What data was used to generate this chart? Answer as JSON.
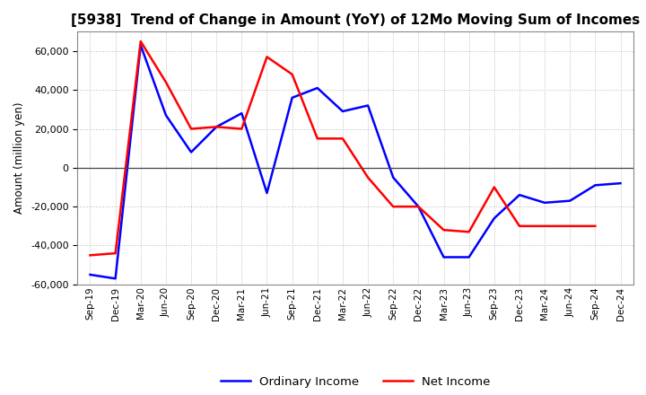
{
  "title": "[5938]  Trend of Change in Amount (YoY) of 12Mo Moving Sum of Incomes",
  "ylabel": "Amount (million yen)",
  "x_labels": [
    "Sep-19",
    "Dec-19",
    "Mar-20",
    "Jun-20",
    "Sep-20",
    "Dec-20",
    "Mar-21",
    "Jun-21",
    "Sep-21",
    "Dec-21",
    "Mar-22",
    "Jun-22",
    "Sep-22",
    "Dec-22",
    "Mar-23",
    "Jun-23",
    "Sep-23",
    "Dec-23",
    "Mar-24",
    "Jun-24",
    "Sep-24",
    "Dec-24"
  ],
  "ordinary_income": [
    -55000,
    -57000,
    63000,
    27000,
    8000,
    21000,
    28000,
    -13000,
    36000,
    41000,
    29000,
    32000,
    -5000,
    -20000,
    -46000,
    -46000,
    -26000,
    -14000,
    -18000,
    -17000,
    -9000,
    -8000
  ],
  "net_income": [
    -45000,
    -44000,
    65000,
    44000,
    20000,
    21000,
    20000,
    57000,
    48000,
    15000,
    15000,
    -5000,
    -20000,
    -20000,
    -32000,
    -33000,
    -10000,
    -30000,
    -30000,
    -30000,
    -30000,
    null
  ],
  "ordinary_color": "#0000ff",
  "net_color": "#ff0000",
  "ylim": [
    -60000,
    70000
  ],
  "yticks": [
    -60000,
    -40000,
    -20000,
    0,
    20000,
    40000,
    60000
  ],
  "background_color": "#ffffff",
  "grid_color": "#bbbbbb"
}
